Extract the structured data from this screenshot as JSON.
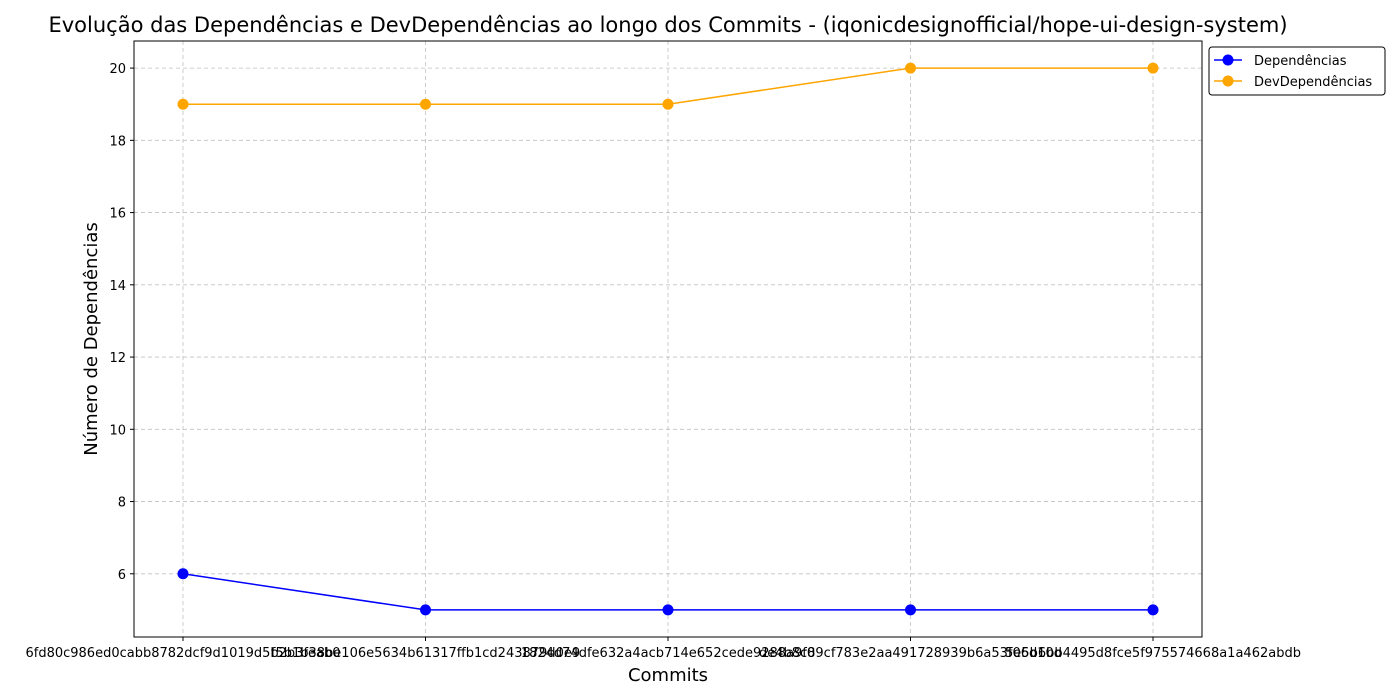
{
  "chart_data": {
    "type": "line",
    "title": "Evolução das Dependências e DevDependências ao longo dos Commits - (iqonicdesignofficial/hope-ui-design-system)",
    "xlabel": "Commits",
    "ylabel": "Número de Dependências",
    "categories": [
      "6fd80c986ed0cabb8782dcf9d1019d5b2b3feab0",
      "f5b1b38be106e5634b61317ffb1cd243879d0e9",
      "1824d74dfe632a4acb714e652cede9288a9f0",
      "de4b8c89cf783e2aa491728939b6a53f06d10d",
      "5e5b6bb4495d8fce5f975574668a1a462abdb"
    ],
    "series": [
      {
        "name": "Dependências",
        "values": [
          6,
          5,
          5,
          5,
          5
        ],
        "color": "#0000ff"
      },
      {
        "name": "DevDependências",
        "values": [
          19,
          19,
          19,
          20,
          20
        ],
        "color": "#ffa500"
      }
    ],
    "yticks": [
      6,
      8,
      10,
      12,
      14,
      16,
      18,
      20
    ],
    "ylim": [
      4.25,
      20.75
    ],
    "grid": true,
    "grid_style": "dashed",
    "legend_position": "outside-top-right",
    "marker": "circle"
  }
}
